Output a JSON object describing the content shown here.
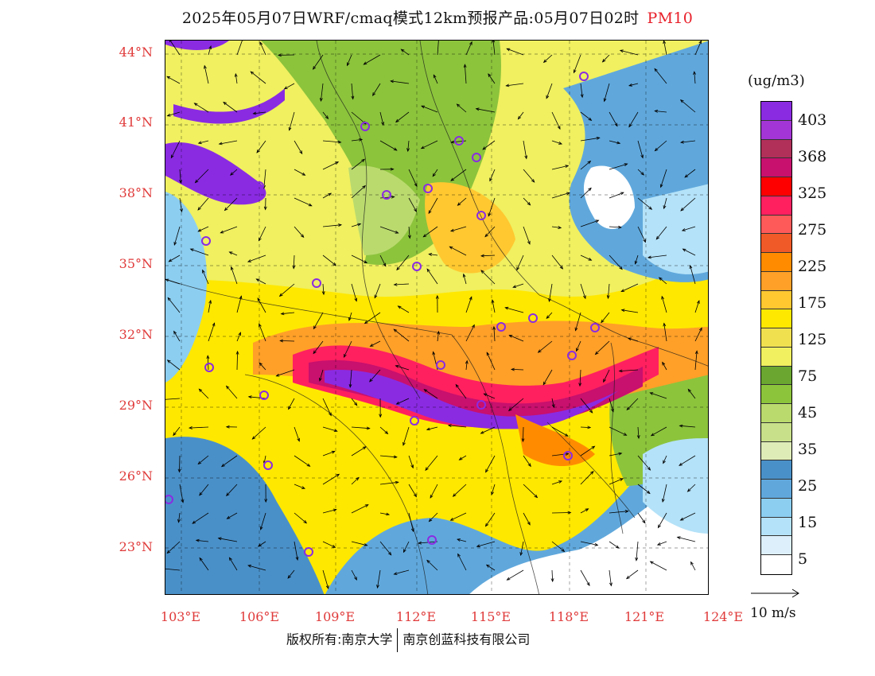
{
  "title": {
    "text": "2025年05月07日WRF/cmaq模式12km预报产品:05月07日02时",
    "variable": "PM10"
  },
  "axes": {
    "lat_labels": [
      "44°N",
      "41°N",
      "38°N",
      "35°N",
      "32°N",
      "29°N",
      "26°N",
      "23°N"
    ],
    "lon_labels": [
      "103°E",
      "106°E",
      "109°E",
      "112°E",
      "115°E",
      "118°E",
      "121°E",
      "124°E"
    ]
  },
  "legend": {
    "unit": "(ug/m3)",
    "colors": [
      "#8a2be2",
      "#a335d6",
      "#b0305a",
      "#c8106e",
      "#ff0000",
      "#ff2060",
      "#ff5a5a",
      "#f05a28",
      "#ff8c00",
      "#ffa028",
      "#ffc830",
      "#ffe800",
      "#f0e050",
      "#f0f060",
      "#6aa630",
      "#8cc43c",
      "#bada6e",
      "#c8e08a",
      "#deecb8",
      "#4a90c8",
      "#60a8dc",
      "#8ccef0",
      "#b4e2f8",
      "#dceffa",
      "#ffffff"
    ],
    "ticks": [
      "403",
      "368",
      "325",
      "275",
      "225",
      "175",
      "125",
      "75",
      "45",
      "35",
      "25",
      "15",
      "5"
    ]
  },
  "wind_reference": {
    "label": "10 m/s"
  },
  "map": {
    "city_markers": 27,
    "palette": {
      "clean": "#ffffff",
      "very_low": "#dceffa",
      "low": "#8ccef0",
      "low_mid": "#4a90c8",
      "green_low": "#bada6e",
      "green": "#8cc43c",
      "yellow_low": "#f0f060",
      "yellow": "#ffe800",
      "orange_low": "#ffc830",
      "orange": "#ffa028",
      "red": "#ff2060",
      "red_dark": "#c8106e",
      "purple": "#8a2be2",
      "marker": "#8a2be2"
    }
  },
  "footer": {
    "left": "版权所有:南京大学",
    "right": "南京创蓝科技有限公司"
  }
}
